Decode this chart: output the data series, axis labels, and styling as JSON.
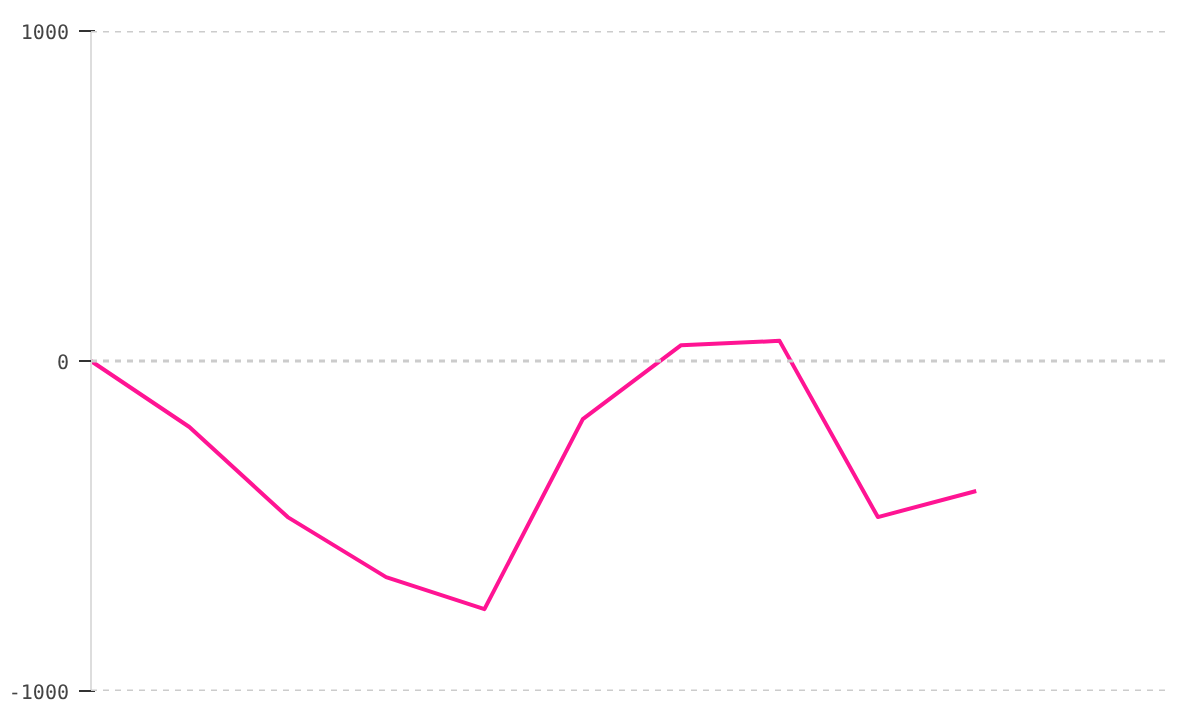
{
  "chart_data": {
    "type": "line",
    "categories": [
      null,
      null,
      null,
      null,
      null,
      null,
      null,
      null,
      null,
      null
    ],
    "series": [
      {
        "color": "#ff1493",
        "values": [
          0,
          -200,
          -473,
          -655,
          -752,
          -176,
          48,
          61,
          -473,
          -394
        ]
      }
    ],
    "ylim": [
      -1000,
      1000
    ],
    "yticks": [
      -1000,
      0,
      1000
    ],
    "grid": "y",
    "tick_labels": "y",
    "marker": "none",
    "line_style": "solid"
  }
}
